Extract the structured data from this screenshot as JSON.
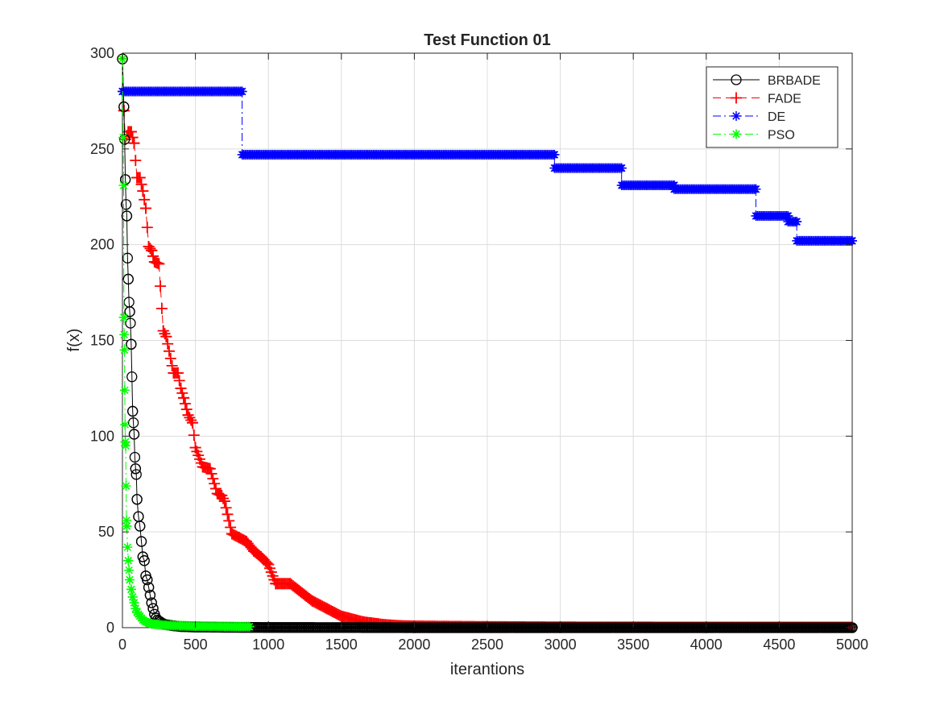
{
  "chart_data": {
    "type": "line",
    "title": "Test Function 01",
    "xlabel": "iterantions",
    "ylabel": "f(x)",
    "xlim": [
      0,
      5000
    ],
    "ylim": [
      0,
      300
    ],
    "xticks": [
      0,
      500,
      1000,
      1500,
      2000,
      2500,
      3000,
      3500,
      4000,
      4500,
      5000
    ],
    "yticks": [
      0,
      50,
      100,
      150,
      200,
      250,
      300
    ],
    "grid": true,
    "legend_position": "top-right",
    "series": [
      {
        "name": "BRBADE",
        "color": "#000000",
        "marker": "circle",
        "line": "solid",
        "x": [
          0,
          10,
          15,
          20,
          25,
          30,
          35,
          40,
          45,
          50,
          55,
          60,
          65,
          70,
          75,
          80,
          85,
          90,
          95,
          100,
          110,
          120,
          130,
          140,
          150,
          160,
          170,
          180,
          190,
          200,
          210,
          220,
          230,
          240,
          260,
          280,
          300,
          350,
          400,
          500,
          700,
          1000,
          1500,
          2000,
          3000,
          4000,
          5000
        ],
        "y": [
          297,
          272,
          255,
          234,
          221,
          215,
          193,
          182,
          170,
          165,
          159,
          148,
          131,
          113,
          107,
          101,
          89,
          83,
          80,
          67,
          58,
          53,
          45,
          37,
          35,
          27,
          25,
          21,
          17,
          13,
          10,
          7,
          5,
          4,
          3,
          2,
          1.5,
          1,
          0.6,
          0.3,
          0.2,
          0.1,
          0.05,
          0,
          0,
          0,
          0
        ]
      },
      {
        "name": "FADE",
        "color": "#ff0000",
        "marker": "plus",
        "line": "dashed",
        "x": [
          0,
          10,
          20,
          40,
          60,
          80,
          100,
          120,
          140,
          160,
          180,
          200,
          220,
          250,
          280,
          300,
          350,
          380,
          400,
          420,
          450,
          480,
          500,
          550,
          600,
          650,
          680,
          700,
          750,
          800,
          850,
          880,
          900,
          950,
          1000,
          1050,
          1100,
          1150,
          1200,
          1250,
          1300,
          1350,
          1400,
          1450,
          1500,
          1550,
          1600,
          1650,
          1700,
          1750,
          1800,
          1900,
          2000,
          2500,
          3000,
          4000,
          5000
        ],
        "y": [
          297,
          270,
          255,
          259,
          259,
          253,
          235,
          235,
          228,
          219,
          199,
          197,
          191,
          190,
          155,
          152,
          133,
          133,
          125,
          120,
          111,
          107,
          94,
          84,
          83,
          70,
          69,
          66,
          49,
          47,
          45,
          42,
          40,
          37,
          33,
          23,
          23,
          23,
          20,
          17,
          14,
          12,
          10,
          8,
          6,
          5,
          4,
          3,
          2.5,
          2,
          1.5,
          1,
          0.8,
          0.5,
          0.3,
          0.2,
          0.2
        ]
      },
      {
        "name": "DE",
        "color": "#0000ff",
        "marker": "asterisk",
        "line": "dashdot",
        "x": [
          0,
          820,
          820,
          2960,
          2960,
          3420,
          3420,
          3780,
          3780,
          4340,
          4340,
          4560,
          4560,
          4620,
          4620,
          5000
        ],
        "y": [
          280,
          280,
          247,
          247,
          240,
          240,
          231,
          231,
          229,
          229,
          215,
          215,
          212,
          212,
          202,
          202
        ]
      },
      {
        "name": "PSO",
        "color": "#00ff00",
        "marker": "asterisk",
        "line": "dashdot",
        "x": [
          0,
          5,
          8,
          10,
          12,
          14,
          16,
          18,
          20,
          22,
          25,
          28,
          30,
          35,
          40,
          45,
          50,
          60,
          70,
          80,
          90,
          100,
          120,
          140,
          160,
          180,
          200,
          250,
          300,
          400,
          500,
          600,
          700,
          800,
          870
        ],
        "y": [
          297,
          256,
          231,
          162,
          153,
          145,
          124,
          106,
          97,
          95,
          74,
          56,
          53,
          42,
          35,
          30,
          25,
          20,
          16,
          13,
          10,
          8,
          6,
          4,
          3,
          2.5,
          2,
          1.5,
          1.2,
          1,
          0.8,
          0.7,
          0.6,
          0.5,
          0.5
        ]
      }
    ]
  }
}
